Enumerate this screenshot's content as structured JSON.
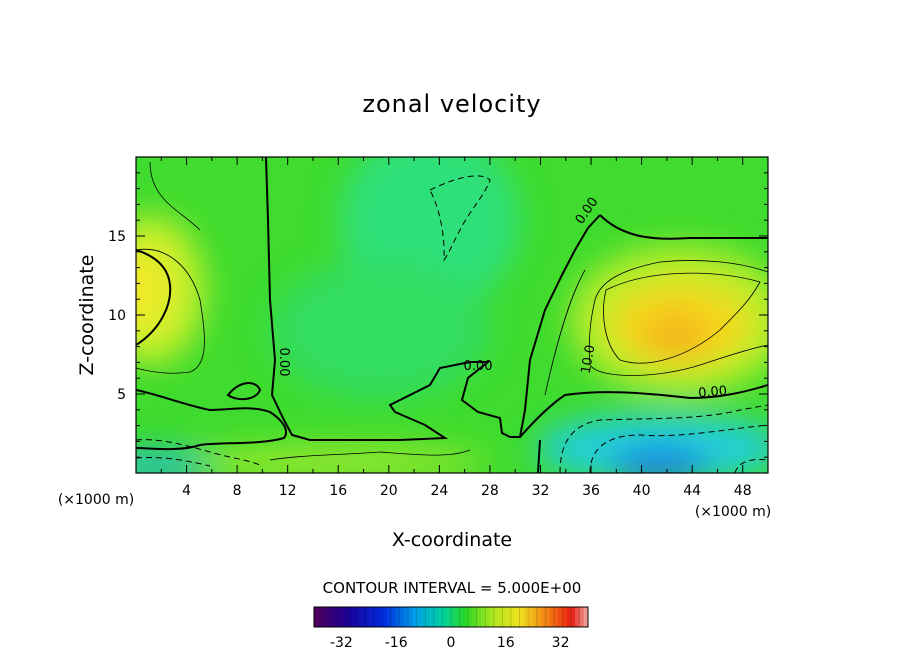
{
  "chart_data": {
    "type": "heatmap",
    "title": "zonal velocity",
    "xlabel": "X-coordinate",
    "ylabel": "Z-coordinate",
    "x_unit": "(×1000 m)",
    "x_unit_right": "(×1000 m)",
    "xlim": [
      0,
      50
    ],
    "ylim": [
      0,
      20
    ],
    "x_ticks": [
      "4",
      "8",
      "12",
      "16",
      "20",
      "24",
      "28",
      "32",
      "36",
      "40",
      "44",
      "48"
    ],
    "y_ticks": [
      "5",
      "10",
      "15"
    ],
    "contour_labels": [
      "0.00",
      "0.00",
      "0.00",
      "10.0",
      "0.00",
      "10.0"
    ],
    "contour_interval_text": "CONTOUR INTERVAL = 5.000E+00",
    "colorbar": {
      "min": -40,
      "max": 40,
      "ticks": [
        "-32",
        "-16",
        "0",
        "16",
        "32"
      ]
    },
    "features": [
      {
        "name": "eastern positive core",
        "x": 42,
        "z": 10,
        "value": 20
      },
      {
        "name": "western positive core",
        "x": 1,
        "z": 11.5,
        "value": 12
      },
      {
        "name": "near-surface negative jet",
        "x": 42,
        "z": 1,
        "value": -16
      },
      {
        "name": "upper negative pocket",
        "x": 25,
        "z": 17,
        "value": -3
      }
    ]
  }
}
